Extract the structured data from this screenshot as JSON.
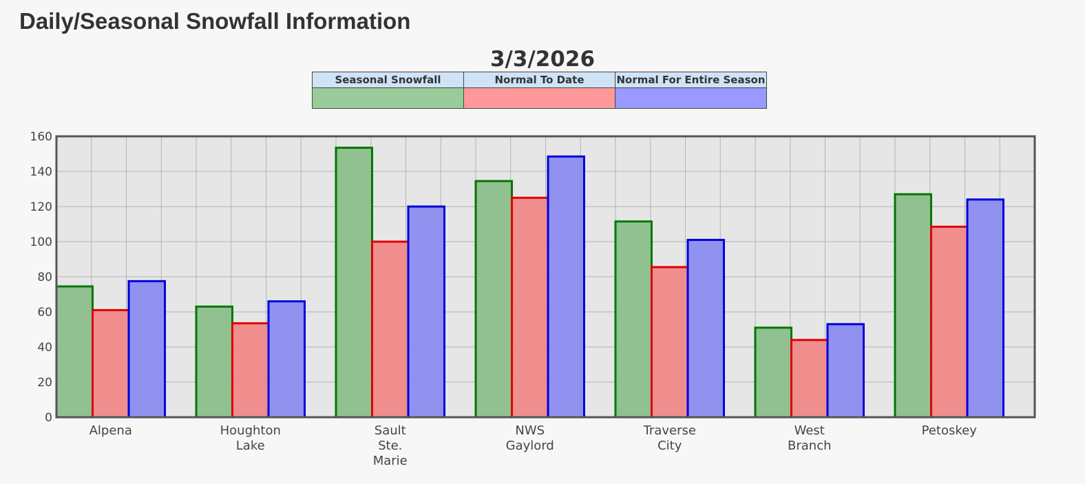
{
  "page": {
    "title": "Daily/Seasonal Snowfall Information"
  },
  "legend": {
    "items": [
      {
        "label": "Seasonal Snowfall",
        "color": "#99cc99"
      },
      {
        "label": "Normal To Date",
        "color": "#ff9999"
      },
      {
        "label": "Normal For Entire Season",
        "color": "#9999ff"
      }
    ]
  },
  "chart_data": {
    "type": "bar",
    "title": "3/3/2026",
    "categories": [
      [
        "Alpena"
      ],
      [
        "Houghton",
        "Lake"
      ],
      [
        "Sault",
        "Ste.",
        "Marie"
      ],
      [
        "NWS",
        "Gaylord"
      ],
      [
        "Traverse",
        "City"
      ],
      [
        "West",
        "Branch"
      ],
      [
        "Petoskey"
      ]
    ],
    "series": [
      {
        "name": "Seasonal Snowfall",
        "values": [
          74.5,
          63,
          153.5,
          134.5,
          111.5,
          51,
          127
        ],
        "fill": "#8cbf8c",
        "stroke": "#007700"
      },
      {
        "name": "Normal To Date",
        "values": [
          61,
          53.5,
          100,
          125,
          85.5,
          44,
          108.5
        ],
        "fill": "#f08888",
        "stroke": "#dd0000"
      },
      {
        "name": "Normal For Entire Season",
        "values": [
          77.5,
          66,
          120,
          148.5,
          101,
          53,
          124
        ],
        "fill": "#8c8cf0",
        "stroke": "#0000dd"
      }
    ],
    "ylim": [
      0,
      160
    ],
    "yticks": [
      0,
      20,
      40,
      60,
      80,
      100,
      120,
      140,
      160
    ],
    "grid": true,
    "legend_position": "top"
  }
}
